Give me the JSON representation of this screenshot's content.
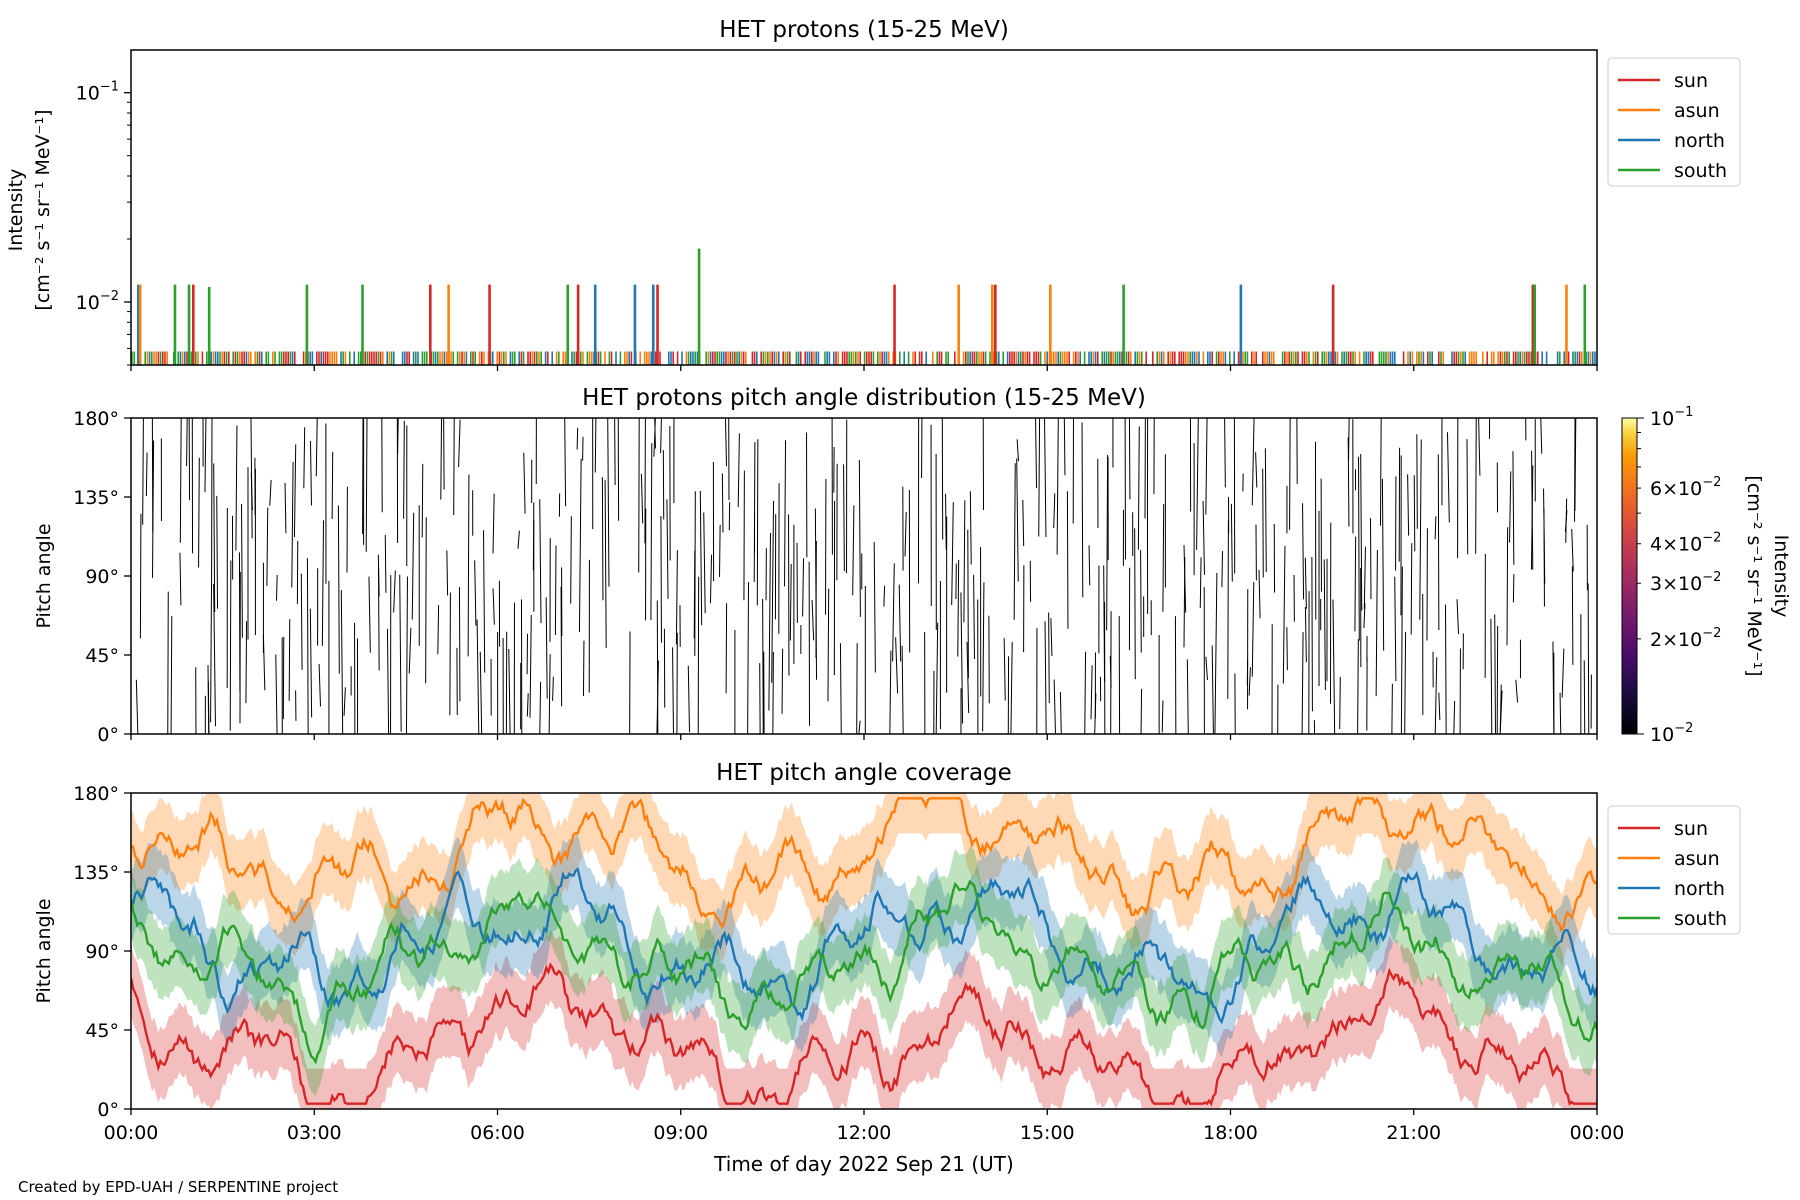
{
  "colors": {
    "sun": "#d62728",
    "asun": "#ff7f0e",
    "north": "#1f77b4",
    "south": "#2ca02c"
  },
  "footer": "Created by EPD-UAH / SERPENTINE project",
  "xlabel": "Time of day 2022 Sep 21 (UT)",
  "xticks": [
    "00:00",
    "03:00",
    "06:00",
    "09:00",
    "12:00",
    "15:00",
    "18:00",
    "21:00",
    "00:00"
  ],
  "chart_data": [
    {
      "type": "line",
      "title": "HET protons (15-25 MeV)",
      "ylabel_line1": "Intensity",
      "ylabel_line2": "[cm⁻² s⁻¹ sr⁻¹ MeV⁻¹]",
      "yscale": "log",
      "ylim": [
        0.005,
        0.16
      ],
      "yticks": [
        {
          "value": 0.1,
          "base": "10",
          "exp": "−1"
        },
        {
          "value": 0.01,
          "base": "10",
          "exp": "−2"
        }
      ],
      "xlim_hours": [
        0,
        24
      ],
      "baseline": 0.0058,
      "legend": [
        "sun",
        "asun",
        "north",
        "south"
      ],
      "legend_position": "outside-right",
      "spikes": [
        {
          "t": 0.12,
          "v": 0.0121,
          "series": "north"
        },
        {
          "t": 0.15,
          "v": 0.0121,
          "series": "asun"
        },
        {
          "t": 0.72,
          "v": 0.0121,
          "series": "south"
        },
        {
          "t": 0.95,
          "v": 0.0121,
          "series": "south"
        },
        {
          "t": 1.02,
          "v": 0.0121,
          "series": "sun"
        },
        {
          "t": 1.28,
          "v": 0.0118,
          "series": "south"
        },
        {
          "t": 2.88,
          "v": 0.0121,
          "series": "south"
        },
        {
          "t": 3.79,
          "v": 0.0121,
          "series": "south"
        },
        {
          "t": 4.9,
          "v": 0.0121,
          "series": "sun"
        },
        {
          "t": 5.2,
          "v": 0.0121,
          "series": "asun"
        },
        {
          "t": 5.87,
          "v": 0.0121,
          "series": "sun"
        },
        {
          "t": 7.15,
          "v": 0.0121,
          "series": "south"
        },
        {
          "t": 7.32,
          "v": 0.0121,
          "series": "sun"
        },
        {
          "t": 7.6,
          "v": 0.0121,
          "series": "north"
        },
        {
          "t": 8.25,
          "v": 0.0121,
          "series": "north"
        },
        {
          "t": 8.55,
          "v": 0.0121,
          "series": "north"
        },
        {
          "t": 8.62,
          "v": 0.0121,
          "series": "sun"
        },
        {
          "t": 9.3,
          "v": 0.018,
          "series": "south"
        },
        {
          "t": 12.5,
          "v": 0.0121,
          "series": "sun"
        },
        {
          "t": 13.55,
          "v": 0.0121,
          "series": "asun"
        },
        {
          "t": 14.1,
          "v": 0.0121,
          "series": "asun"
        },
        {
          "t": 14.15,
          "v": 0.0121,
          "series": "sun"
        },
        {
          "t": 15.05,
          "v": 0.0121,
          "series": "asun"
        },
        {
          "t": 16.25,
          "v": 0.0121,
          "series": "south"
        },
        {
          "t": 18.17,
          "v": 0.0121,
          "series": "north"
        },
        {
          "t": 19.68,
          "v": 0.0121,
          "series": "sun"
        },
        {
          "t": 22.95,
          "v": 0.0121,
          "series": "sun"
        },
        {
          "t": 22.98,
          "v": 0.0121,
          "series": "south"
        },
        {
          "t": 23.5,
          "v": 0.0121,
          "series": "asun"
        },
        {
          "t": 23.8,
          "v": 0.0121,
          "series": "south"
        }
      ]
    },
    {
      "type": "heatmap",
      "title": "HET protons pitch angle distribution (15-25 MeV)",
      "ylabel": "Pitch angle",
      "ylim": [
        0,
        180
      ],
      "yticks": [
        "0°",
        "45°",
        "90°",
        "135°",
        "180°"
      ],
      "colormap": "inferno",
      "colorbar_label_line1": "Intensity",
      "colorbar_label_line2": "[cm⁻² s⁻¹ sr⁻¹ MeV⁻¹]",
      "colorbar_ticks": [
        {
          "value": 0.1,
          "label": "10",
          "exp": "−1",
          "mant": ""
        },
        {
          "value": 0.06,
          "label": "10",
          "exp": "−2",
          "mant": "6"
        },
        {
          "value": 0.04,
          "label": "10",
          "exp": "−2",
          "mant": "4"
        },
        {
          "value": 0.03,
          "label": "10",
          "exp": "−2",
          "mant": "3"
        },
        {
          "value": 0.02,
          "label": "10",
          "exp": "−2",
          "mant": "2"
        },
        {
          "value": 0.01,
          "label": "10",
          "exp": "−2",
          "mant": ""
        }
      ],
      "colorbar_range": [
        0.01,
        0.1
      ]
    },
    {
      "type": "line",
      "title": "HET pitch angle coverage",
      "ylabel": "Pitch angle",
      "ylim": [
        0,
        180
      ],
      "yticks": [
        "0°",
        "45°",
        "90°",
        "135°",
        "180°"
      ],
      "legend": [
        "sun",
        "asun",
        "north",
        "south"
      ],
      "legend_position": "outside-right",
      "series_mean_deg": {
        "sun": 35,
        "asun": 145,
        "north": 95,
        "south": 85
      },
      "band_halfwidth_deg": 20
    }
  ]
}
